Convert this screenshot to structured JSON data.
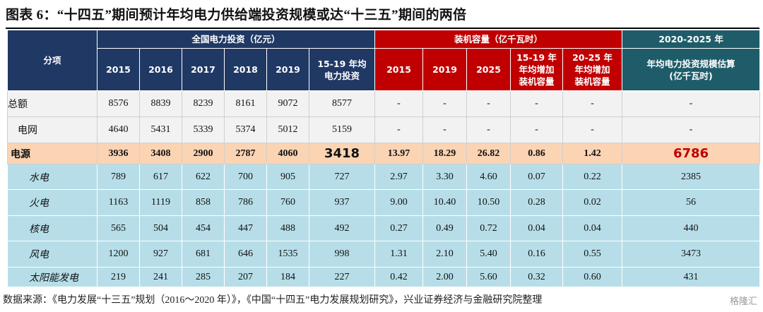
{
  "header": {
    "title": "图表 6：“十四五”期间预计年均电力供给端投资规模或达“十三五”期间的两倍"
  },
  "table": {
    "corner": "分项",
    "groups": [
      "全国电力投资（亿元）",
      "装机容量（亿千瓦时）",
      "2020-2025 年"
    ],
    "columns": [
      [
        "2015"
      ],
      [
        "2016"
      ],
      [
        "2017"
      ],
      [
        "2018"
      ],
      [
        "2019"
      ],
      [
        "15-19 年均",
        "电力投资"
      ],
      [
        "2015"
      ],
      [
        "2019"
      ],
      [
        "2025"
      ],
      [
        "15-19 年",
        "年均增加",
        "装机容量"
      ],
      [
        "20-25 年",
        "年均增加",
        "装机容量"
      ],
      [
        "年均电力投资规模估算",
        "(亿千瓦时)"
      ]
    ],
    "rows": [
      {
        "label": "总额",
        "cells": [
          "8576",
          "8839",
          "8239",
          "8161",
          "9072",
          "8577",
          "-",
          "-",
          "-",
          "-",
          "-",
          "-"
        ]
      },
      {
        "label": "电网",
        "cells": [
          "4640",
          "5431",
          "5339",
          "5374",
          "5012",
          "5159",
          "-",
          "-",
          "-",
          "-",
          "-",
          "-"
        ]
      },
      {
        "label": "电源",
        "cells": [
          "3936",
          "3408",
          "2900",
          "2787",
          "4060",
          "3418",
          "13.97",
          "18.29",
          "26.82",
          "0.86",
          "1.42",
          "6786"
        ]
      },
      {
        "label": "水电",
        "cells": [
          "789",
          "617",
          "622",
          "700",
          "905",
          "727",
          "2.97",
          "3.30",
          "4.60",
          "0.07",
          "0.22",
          "2385"
        ]
      },
      {
        "label": "火电",
        "cells": [
          "1163",
          "1119",
          "858",
          "786",
          "760",
          "937",
          "9.00",
          "10.40",
          "10.50",
          "0.28",
          "0.02",
          "56"
        ]
      },
      {
        "label": "核电",
        "cells": [
          "565",
          "504",
          "454",
          "447",
          "488",
          "492",
          "0.27",
          "0.49",
          "0.72",
          "0.04",
          "0.04",
          "440"
        ]
      },
      {
        "label": "风电",
        "cells": [
          "1200",
          "927",
          "681",
          "646",
          "1535",
          "998",
          "1.31",
          "2.10",
          "5.40",
          "0.16",
          "0.55",
          "3473"
        ]
      },
      {
        "label": "太阳能发电",
        "cells": [
          "219",
          "241",
          "285",
          "207",
          "184",
          "227",
          "0.42",
          "2.00",
          "5.60",
          "0.32",
          "0.60",
          "431"
        ]
      }
    ]
  },
  "source": "数据来源：《电力发展“十三五”规划（2016～2020 年）》，《中国“十四五”电力发展规划研究》，兴业证券经济与金融研究院整理",
  "watermark": "格隆汇"
}
